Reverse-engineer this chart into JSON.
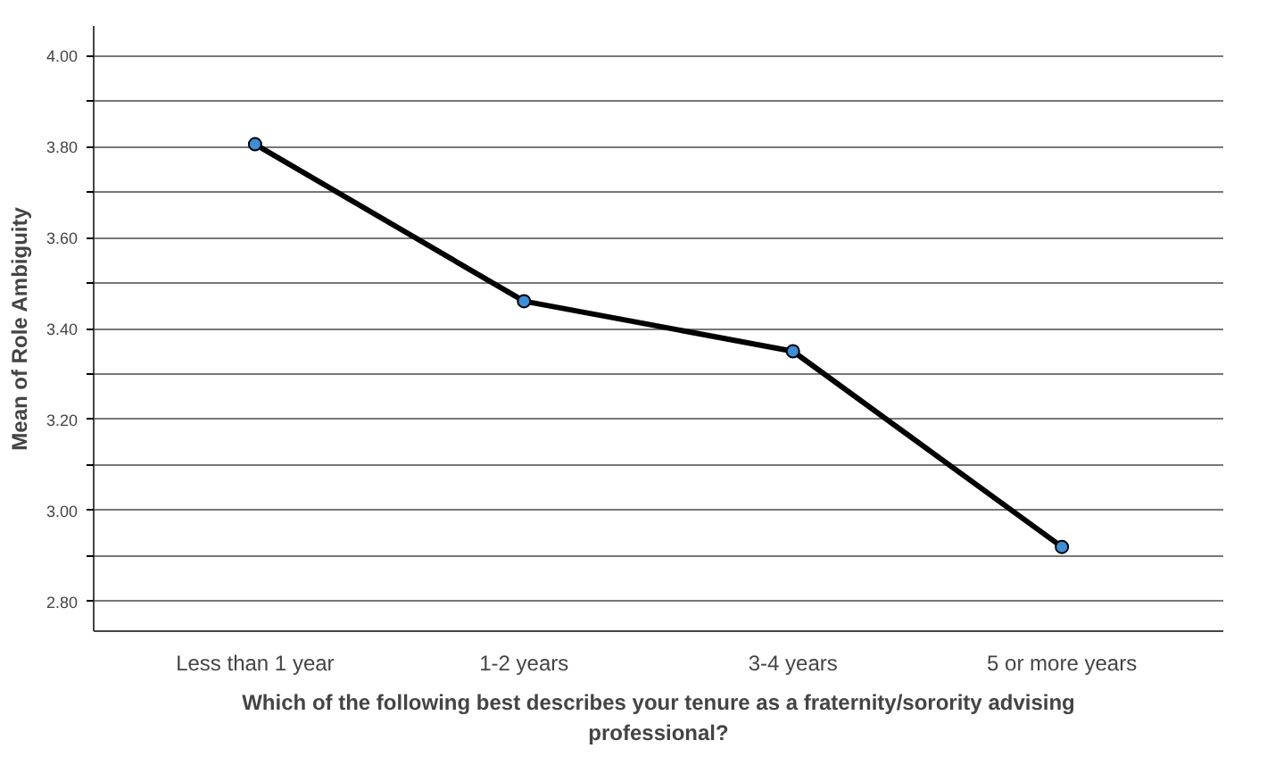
{
  "chart_data": {
    "type": "line",
    "xlabel": "Which of the following best describes your tenure as a fraternity/sorority advising professional?",
    "ylabel": "Mean of Role Ambiguity",
    "categories": [
      "Less than 1 year",
      "1-2 years",
      "3-4 years",
      "5 or more years"
    ],
    "series": [
      {
        "color": "#000000",
        "values": [
          3.805,
          3.46,
          3.35,
          2.92
        ]
      }
    ],
    "marker": "circle",
    "line_style": "solid",
    "grid": "y",
    "ylim": [
      2.735,
      4.065
    ],
    "yticks": [
      {
        "value": 2.8,
        "label": "2.80"
      },
      {
        "value": 2.9,
        "label": null
      },
      {
        "value": 3.0,
        "label": "3.00"
      },
      {
        "value": 3.1,
        "label": null
      },
      {
        "value": 3.2,
        "label": "3.20"
      },
      {
        "value": 3.3,
        "label": null
      },
      {
        "value": 3.4,
        "label": "3.40"
      },
      {
        "value": 3.5,
        "label": null
      },
      {
        "value": 3.6,
        "label": "3.60"
      },
      {
        "value": 3.7,
        "label": null
      },
      {
        "value": 3.8,
        "label": "3.80"
      },
      {
        "value": 3.9,
        "label": null
      },
      {
        "value": 4.0,
        "label": "4.00"
      }
    ]
  }
}
